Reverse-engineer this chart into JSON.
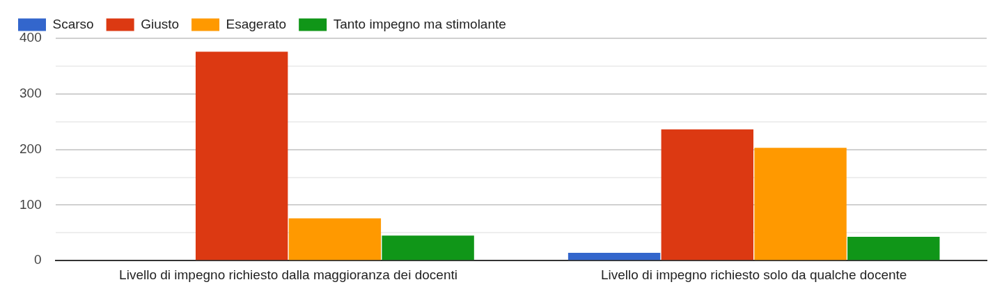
{
  "chart_data": {
    "type": "bar",
    "categories": [
      "Livello di impegno richiesto dalla maggioranza dei docenti",
      "Livello di impegno richiesto solo da qualche docente"
    ],
    "series": [
      {
        "name": "Scarso",
        "color": "#3366cc",
        "values": [
          null,
          14
        ]
      },
      {
        "name": "Giusto",
        "color": "#dc3912",
        "values": [
          376,
          236
        ]
      },
      {
        "name": "Esagerato",
        "color": "#ff9900",
        "values": [
          76,
          203
        ]
      },
      {
        "name": "Tanto impegno ma stimolante",
        "color": "#109618",
        "values": [
          45,
          43
        ]
      }
    ],
    "ylim": [
      0,
      400
    ],
    "yticks": [
      0,
      {
        "value": 50,
        "label": null
      },
      100,
      {
        "value": 150,
        "label": null
      },
      200,
      {
        "value": 250,
        "label": null
      },
      300,
      {
        "value": 350,
        "label": null
      },
      400
    ],
    "grid": "y",
    "legend": "top left"
  }
}
